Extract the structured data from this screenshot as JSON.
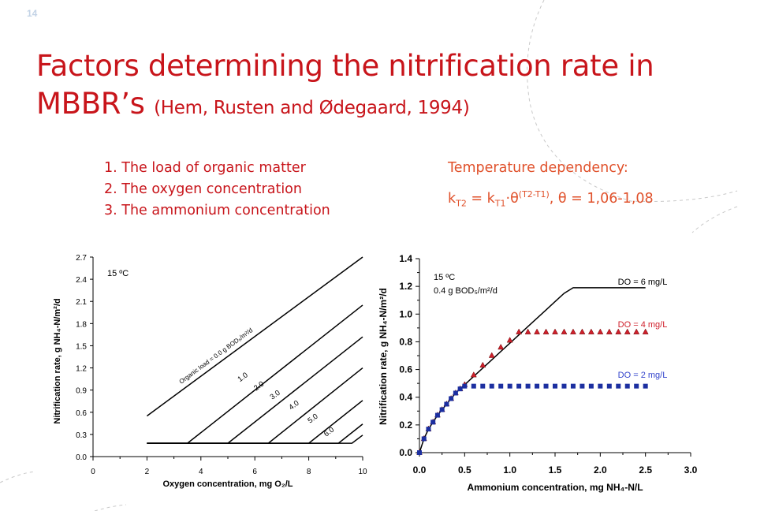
{
  "slide": {
    "number": "14",
    "title_main": "Factors determining the nitrification rate in MBBR’s",
    "title_cite": "(Hem, Rusten and Ødegaard, 1994)",
    "factors": [
      "1. The load of organic matter",
      "2. The oxygen concentration",
      "3. The ammonium concentration"
    ],
    "temp_heading": "Temperature dependency:",
    "formula": {
      "k": "k",
      "sub_T2": "T2",
      "eq": " = ",
      "sub_T1": "T1",
      "dot_theta": "·θ",
      "exponent": "(T2-T1)",
      "theta_range": ",  θ = 1,06-1,08"
    }
  },
  "colors": {
    "title": "#c8151b",
    "formula": "#e0512b",
    "red_series": "#d0202c",
    "blue_series": "#1c2fa0",
    "blue_label": "#3344cc"
  },
  "chart_data": [
    {
      "type": "line",
      "annotation": "15 ºC",
      "xlabel": "Oxygen concentration, mg O₂/L",
      "ylabel": "Nitrification rate, g NH₄-N/m²/d",
      "xlim": [
        0,
        10
      ],
      "ylim": [
        0,
        2.7
      ],
      "xticks": [
        "0",
        "2",
        "4",
        "6",
        "8",
        "10"
      ],
      "yticks": [
        "0.0",
        "0.3",
        "0.6",
        "0.9",
        "1.2",
        "1.5",
        "1.8",
        "2.1",
        "2.4",
        "2.7"
      ],
      "series": [
        {
          "name": "Organic load = 0.0 g BOD₅/m²/d",
          "x": [
            2.0,
            10
          ],
          "y": [
            0.55,
            2.7
          ]
        },
        {
          "name": "1.0",
          "x": [
            2.0,
            3.5,
            10
          ],
          "y": [
            0.18,
            0.18,
            2.05
          ]
        },
        {
          "name": "2.0",
          "x": [
            2.0,
            5.0,
            10
          ],
          "y": [
            0.18,
            0.18,
            1.62
          ]
        },
        {
          "name": "3.0",
          "x": [
            2.0,
            6.5,
            10
          ],
          "y": [
            0.18,
            0.18,
            1.2
          ]
        },
        {
          "name": "4.0",
          "x": [
            2.0,
            8.0,
            10
          ],
          "y": [
            0.18,
            0.18,
            0.76
          ]
        },
        {
          "name": "5.0",
          "x": [
            2.0,
            9.1,
            10
          ],
          "y": [
            0.18,
            0.18,
            0.44
          ]
        },
        {
          "name": "6.0",
          "x": [
            2.0,
            9.6,
            10
          ],
          "y": [
            0.18,
            0.18,
            0.29
          ]
        }
      ]
    },
    {
      "type": "line",
      "annotation_line1": "15 ºC",
      "annotation_line2": "0.4 g BOD₅/m²/d",
      "xlabel": "Ammonium concentration, mg NH₄-N/L",
      "ylabel": "Nitrification rate, g NH₄-N/m²/d",
      "xlim": [
        0,
        3.0
      ],
      "ylim": [
        0,
        1.4
      ],
      "xticks": [
        "0.0",
        "0.5",
        "1.0",
        "1.5",
        "2.0",
        "2.5",
        "3.0"
      ],
      "yticks": [
        "0.0",
        "0.2",
        "0.4",
        "0.6",
        "0.8",
        "1.0",
        "1.2",
        "1.4"
      ],
      "series": [
        {
          "name": "DO = 6 mg/L",
          "x": [
            0,
            0.05,
            0.1,
            0.15,
            0.2,
            0.25,
            0.3,
            0.35,
            0.4,
            0.45,
            0.5,
            0.6,
            0.7,
            0.8,
            0.9,
            1.0,
            1.1,
            1.2,
            1.3,
            1.4,
            1.5,
            1.6,
            1.7,
            1.75,
            2.5
          ],
          "y": [
            0,
            0.1,
            0.17,
            0.22,
            0.27,
            0.31,
            0.35,
            0.39,
            0.43,
            0.46,
            0.49,
            0.55,
            0.61,
            0.67,
            0.73,
            0.79,
            0.85,
            0.91,
            0.97,
            1.03,
            1.09,
            1.15,
            1.19,
            1.19,
            1.19
          ]
        },
        {
          "name": "DO = 4 mg/L",
          "x": [
            0,
            0.05,
            0.1,
            0.15,
            0.2,
            0.25,
            0.3,
            0.35,
            0.4,
            0.45,
            0.5,
            0.6,
            0.7,
            0.8,
            0.9,
            1.0,
            1.1,
            1.2,
            1.3,
            1.4,
            1.5,
            1.6,
            1.7,
            1.8,
            1.9,
            2.0,
            2.1,
            2.2,
            2.3,
            2.4,
            2.5
          ],
          "y": [
            0,
            0.1,
            0.17,
            0.22,
            0.27,
            0.31,
            0.35,
            0.39,
            0.43,
            0.46,
            0.49,
            0.56,
            0.63,
            0.7,
            0.76,
            0.81,
            0.87,
            0.87,
            0.87,
            0.87,
            0.87,
            0.87,
            0.87,
            0.87,
            0.87,
            0.87,
            0.87,
            0.87,
            0.87,
            0.87,
            0.87
          ]
        },
        {
          "name": "DO = 2 mg/L",
          "x": [
            0,
            0.05,
            0.1,
            0.15,
            0.2,
            0.25,
            0.3,
            0.35,
            0.4,
            0.45,
            0.5,
            0.6,
            0.7,
            0.8,
            0.9,
            1.0,
            1.1,
            1.2,
            1.3,
            1.4,
            1.5,
            1.6,
            1.7,
            1.8,
            1.9,
            2.0,
            2.1,
            2.2,
            2.3,
            2.4,
            2.5
          ],
          "y": [
            0,
            0.1,
            0.17,
            0.22,
            0.27,
            0.31,
            0.35,
            0.39,
            0.43,
            0.46,
            0.48,
            0.48,
            0.48,
            0.48,
            0.48,
            0.48,
            0.48,
            0.48,
            0.48,
            0.48,
            0.48,
            0.48,
            0.48,
            0.48,
            0.48,
            0.48,
            0.48,
            0.48,
            0.48,
            0.48,
            0.48
          ]
        }
      ]
    }
  ]
}
